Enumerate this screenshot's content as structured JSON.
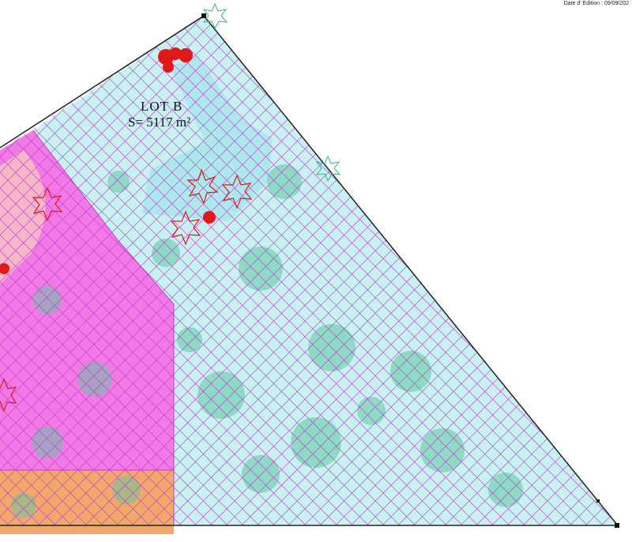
{
  "header": {
    "edition_date": "Date d' Edition : 09/09/202"
  },
  "lot": {
    "title": "LOT B",
    "area": "S= 5117 m²"
  },
  "colors": {
    "lot_b_fill": "#c8f2f2",
    "adjacent_fill": "#f27ae6",
    "band_fill": "#f2a86a",
    "hatch": "#c23cd2",
    "vegetation": "#5ec9a0",
    "trees": "#e01818",
    "boundary": "#222222"
  },
  "icons": [
    "tree-symbol",
    "shrub-symbol",
    "boundary-marker"
  ]
}
